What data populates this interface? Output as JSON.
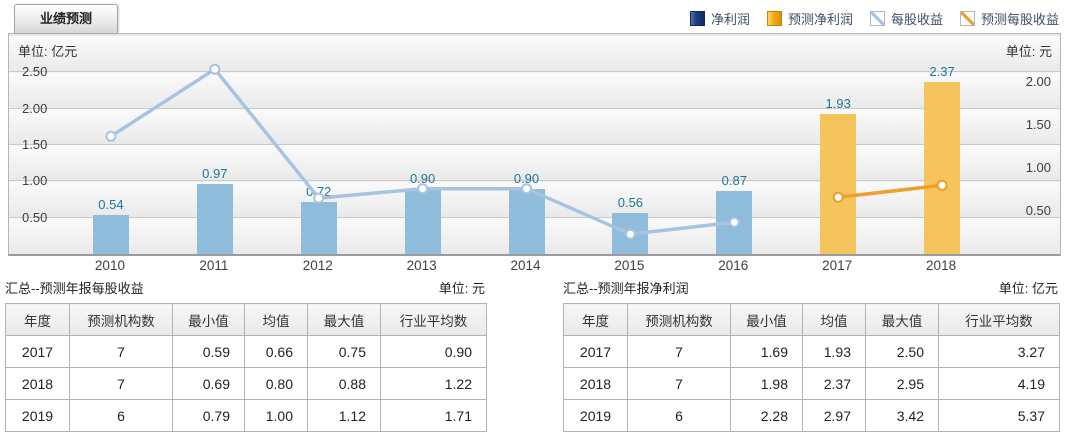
{
  "tab": {
    "label": "业绩预测"
  },
  "legend": {
    "items": [
      {
        "label": "净利润",
        "swatch": "bar-navy",
        "color": "#1d3e80"
      },
      {
        "label": "预测净利润",
        "swatch": "bar-orange",
        "color": "#f0a500"
      },
      {
        "label": "每股收益",
        "swatch": "line-blue",
        "color": "#a6c4e2"
      },
      {
        "label": "预测每股收益",
        "swatch": "line-orange",
        "color": "#ef9f2e"
      }
    ]
  },
  "chart_data": {
    "type": "bar+line dual-axis combo",
    "categories": [
      "2010",
      "2011",
      "2012",
      "2013",
      "2014",
      "2015",
      "2016",
      "2017",
      "2018"
    ],
    "left_axis": {
      "unit_label": "单位: 亿元",
      "ticks": [
        "0.50",
        "1.00",
        "1.50",
        "2.00",
        "2.50"
      ],
      "ylim": [
        0,
        3.03
      ]
    },
    "right_axis": {
      "unit_label": "单位: 元",
      "ticks": [
        "0.50",
        "1.00",
        "1.50",
        "2.00"
      ],
      "ylim": [
        0,
        2.56
      ]
    },
    "grid": true,
    "legend_position": "top-right",
    "series": [
      {
        "name": "净利润",
        "type": "bar",
        "axis": "left",
        "color": "#90bcdc",
        "values": [
          0.54,
          0.97,
          0.72,
          0.9,
          0.9,
          0.56,
          0.87,
          null,
          null
        ],
        "show_labels": true
      },
      {
        "name": "预测净利润",
        "type": "bar",
        "axis": "left",
        "color": "#f6c45c",
        "values": [
          null,
          null,
          null,
          null,
          null,
          null,
          null,
          1.93,
          2.37
        ],
        "show_labels": true
      },
      {
        "name": "每股收益",
        "type": "line",
        "axis": "right",
        "color": "#a6c4e2",
        "values": [
          1.37,
          2.15,
          0.65,
          0.76,
          0.76,
          0.23,
          0.37,
          null,
          null
        ],
        "show_labels": false
      },
      {
        "name": "预测每股收益",
        "type": "line",
        "axis": "right",
        "color": "#ef9f2e",
        "values": [
          null,
          null,
          null,
          null,
          null,
          null,
          null,
          0.66,
          0.8
        ],
        "show_labels": false
      }
    ],
    "value_label_color": "#1d7695"
  },
  "tables": [
    {
      "title": "汇总--预测年报每股收益",
      "unit": "单位: 元",
      "headers": [
        "年度",
        "预测机构数",
        "最小值",
        "均值",
        "最大值",
        "行业平均数"
      ],
      "rows": [
        [
          "2017",
          "7",
          "0.59",
          "0.66",
          "0.75",
          "0.90"
        ],
        [
          "2018",
          "7",
          "0.69",
          "0.80",
          "0.88",
          "1.22"
        ],
        [
          "2019",
          "6",
          "0.79",
          "1.00",
          "1.12",
          "1.71"
        ]
      ]
    },
    {
      "title": "汇总--预测年报净利润",
      "unit": "单位: 亿元",
      "headers": [
        "年度",
        "预测机构数",
        "最小值",
        "均值",
        "最大值",
        "行业平均数"
      ],
      "rows": [
        [
          "2017",
          "7",
          "1.69",
          "1.93",
          "2.50",
          "3.27"
        ],
        [
          "2018",
          "7",
          "1.98",
          "2.37",
          "2.95",
          "4.19"
        ],
        [
          "2019",
          "6",
          "2.28",
          "2.97",
          "3.42",
          "5.37"
        ]
      ]
    }
  ]
}
